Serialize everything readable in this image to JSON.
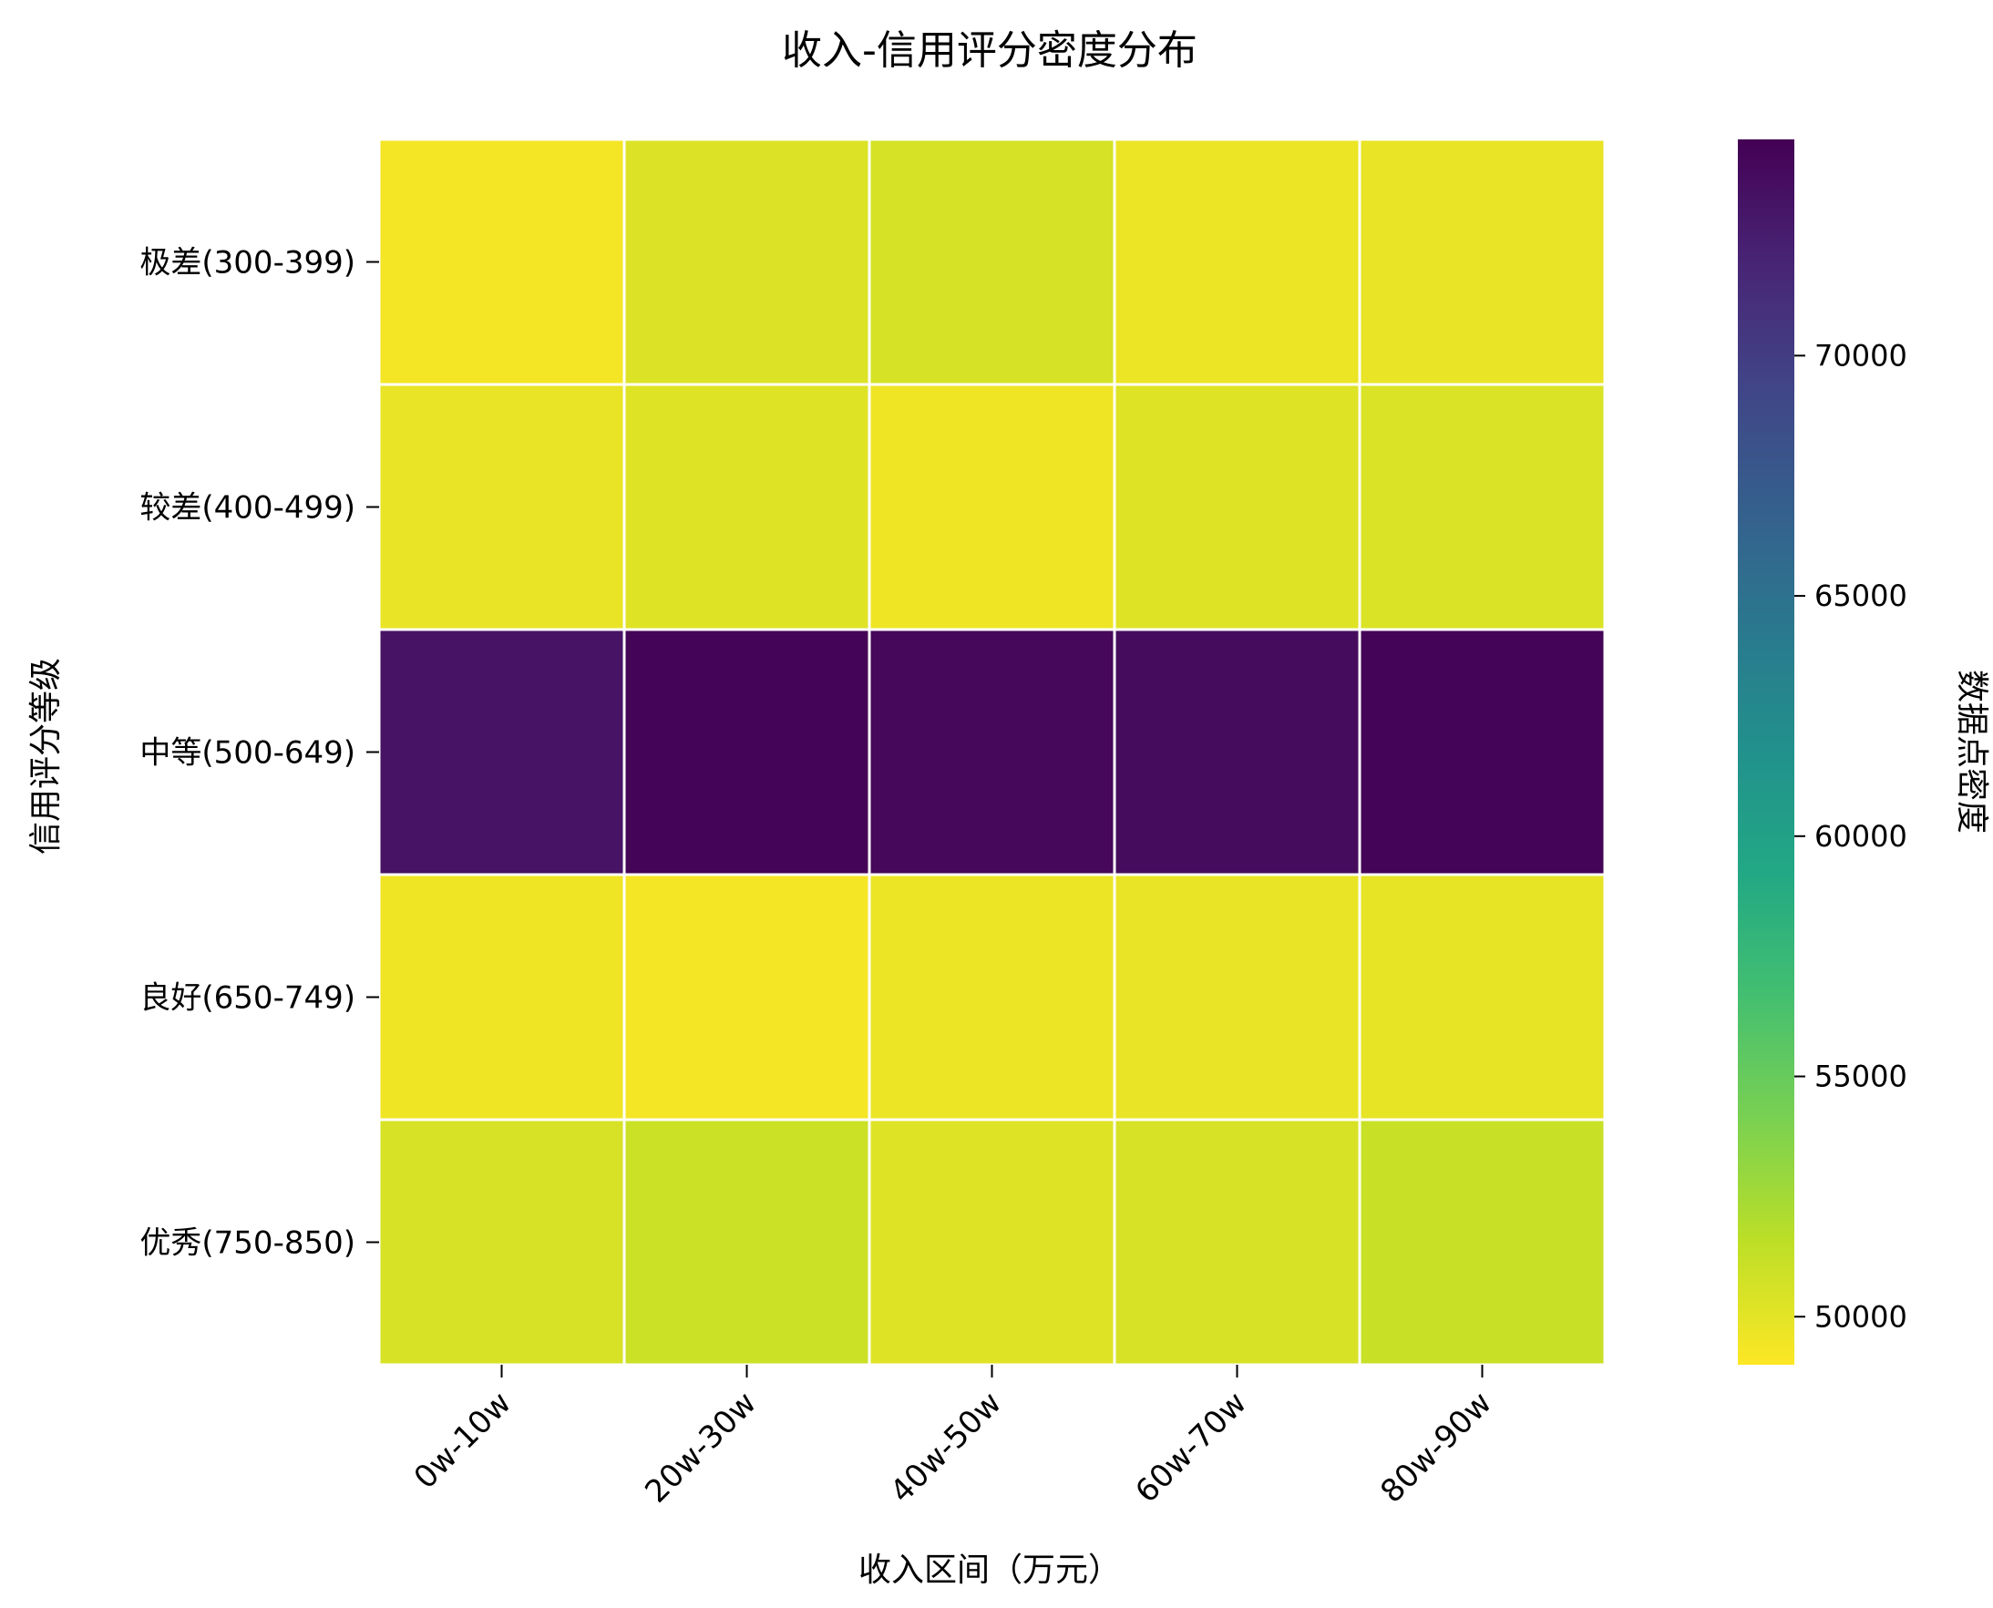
{
  "chart_data": {
    "type": "heatmap",
    "title": "收入-信用评分密度分布",
    "xlabel": "收入区间（万元）",
    "ylabel": "信用评分等级",
    "x_categories": [
      "0w-10w",
      "20w-30w",
      "40w-50w",
      "60w-70w",
      "80w-90w"
    ],
    "y_categories": [
      "极差(300-399)",
      "较差(400-499)",
      "中等(500-649)",
      "良好(650-749)",
      "优秀(750-850)"
    ],
    "values": [
      [
        49300,
        50300,
        50600,
        49700,
        49800
      ],
      [
        49800,
        50200,
        49500,
        50200,
        50400
      ],
      [
        73200,
        74300,
        74000,
        73700,
        74200
      ],
      [
        49500,
        49300,
        49700,
        49800,
        49900
      ],
      [
        50500,
        51000,
        50200,
        50500,
        51100
      ]
    ],
    "colorbar": {
      "label": "数据点密度",
      "range": [
        49000,
        74500
      ],
      "ticks": [
        50000,
        55000,
        60000,
        65000,
        70000
      ],
      "colormap": "viridis_r"
    },
    "grid_color": "#ffffff"
  }
}
